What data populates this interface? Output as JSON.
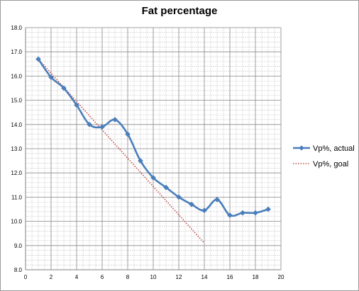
{
  "chart_data": {
    "type": "line",
    "title": "Fat percentage",
    "xlabel": "",
    "ylabel": "",
    "xlim": [
      0,
      20
    ],
    "ylim": [
      8.0,
      18.0
    ],
    "xticks": [
      "0",
      "2",
      "4",
      "6",
      "8",
      "10",
      "12",
      "14",
      "16",
      "18",
      "20"
    ],
    "yticks": [
      "8.0",
      "9.0",
      "10.0",
      "11.0",
      "12.0",
      "13.0",
      "14.0",
      "15.0",
      "16.0",
      "17.0",
      "18.0"
    ],
    "grid": "major and minor",
    "legend_position": "right",
    "series": [
      {
        "name": "Vp%, actual",
        "color": "#4a7ebb",
        "style": "solid with diamond markers",
        "x": [
          1,
          2,
          3,
          4,
          5,
          6,
          7,
          8,
          9,
          10,
          11,
          12,
          13,
          14,
          15,
          16,
          17,
          18,
          19
        ],
        "y": [
          16.7,
          15.95,
          15.5,
          14.8,
          14.0,
          13.9,
          14.2,
          13.6,
          12.5,
          11.8,
          11.4,
          11.0,
          10.7,
          10.45,
          10.9,
          10.25,
          10.35,
          10.35,
          10.5
        ]
      },
      {
        "name": "Vp%, goal",
        "color": "#c0504d",
        "style": "dotted",
        "x": [
          1,
          14
        ],
        "y": [
          16.7,
          9.1
        ]
      }
    ]
  }
}
